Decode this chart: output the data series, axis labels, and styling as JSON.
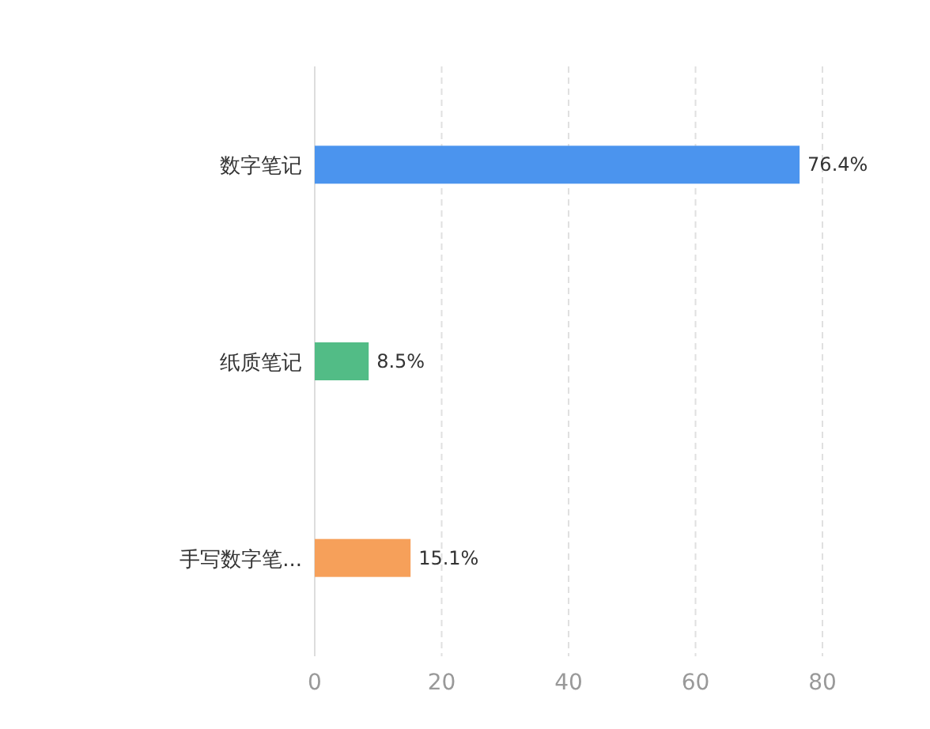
{
  "chart_data": {
    "type": "bar",
    "orientation": "horizontal",
    "categories": [
      "数字笔记",
      "纸质笔记",
      "手写数字笔..."
    ],
    "values": [
      76.4,
      8.5,
      15.1
    ],
    "colors": [
      "#4b94ee",
      "#52bc86",
      "#f6a05a"
    ],
    "value_labels": [
      "76.4%",
      "8.5%",
      "15.1%"
    ],
    "xlim": [
      0,
      80
    ],
    "xticks": [
      0,
      20,
      40,
      60,
      80
    ],
    "grid": "x"
  }
}
